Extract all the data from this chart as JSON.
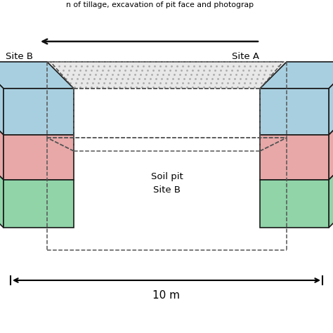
{
  "title_partial": "n of tillage, excavation of pit face and photograp",
  "site_b_label": "Site B",
  "site_a_label": "Site A",
  "soil_pit_label1": "Soil pit",
  "soil_pit_label2": "Site B",
  "distance_label": "10 m",
  "bg_color": "#ffffff",
  "blue_color": "#a8cfe0",
  "pink_color": "#e8a8a8",
  "green_color": "#90d4a8",
  "dark_outline": "#1a1a1a",
  "arrow_color": "#111111",
  "dash_color": "#555555",
  "dot_color": "#aaaaaa"
}
